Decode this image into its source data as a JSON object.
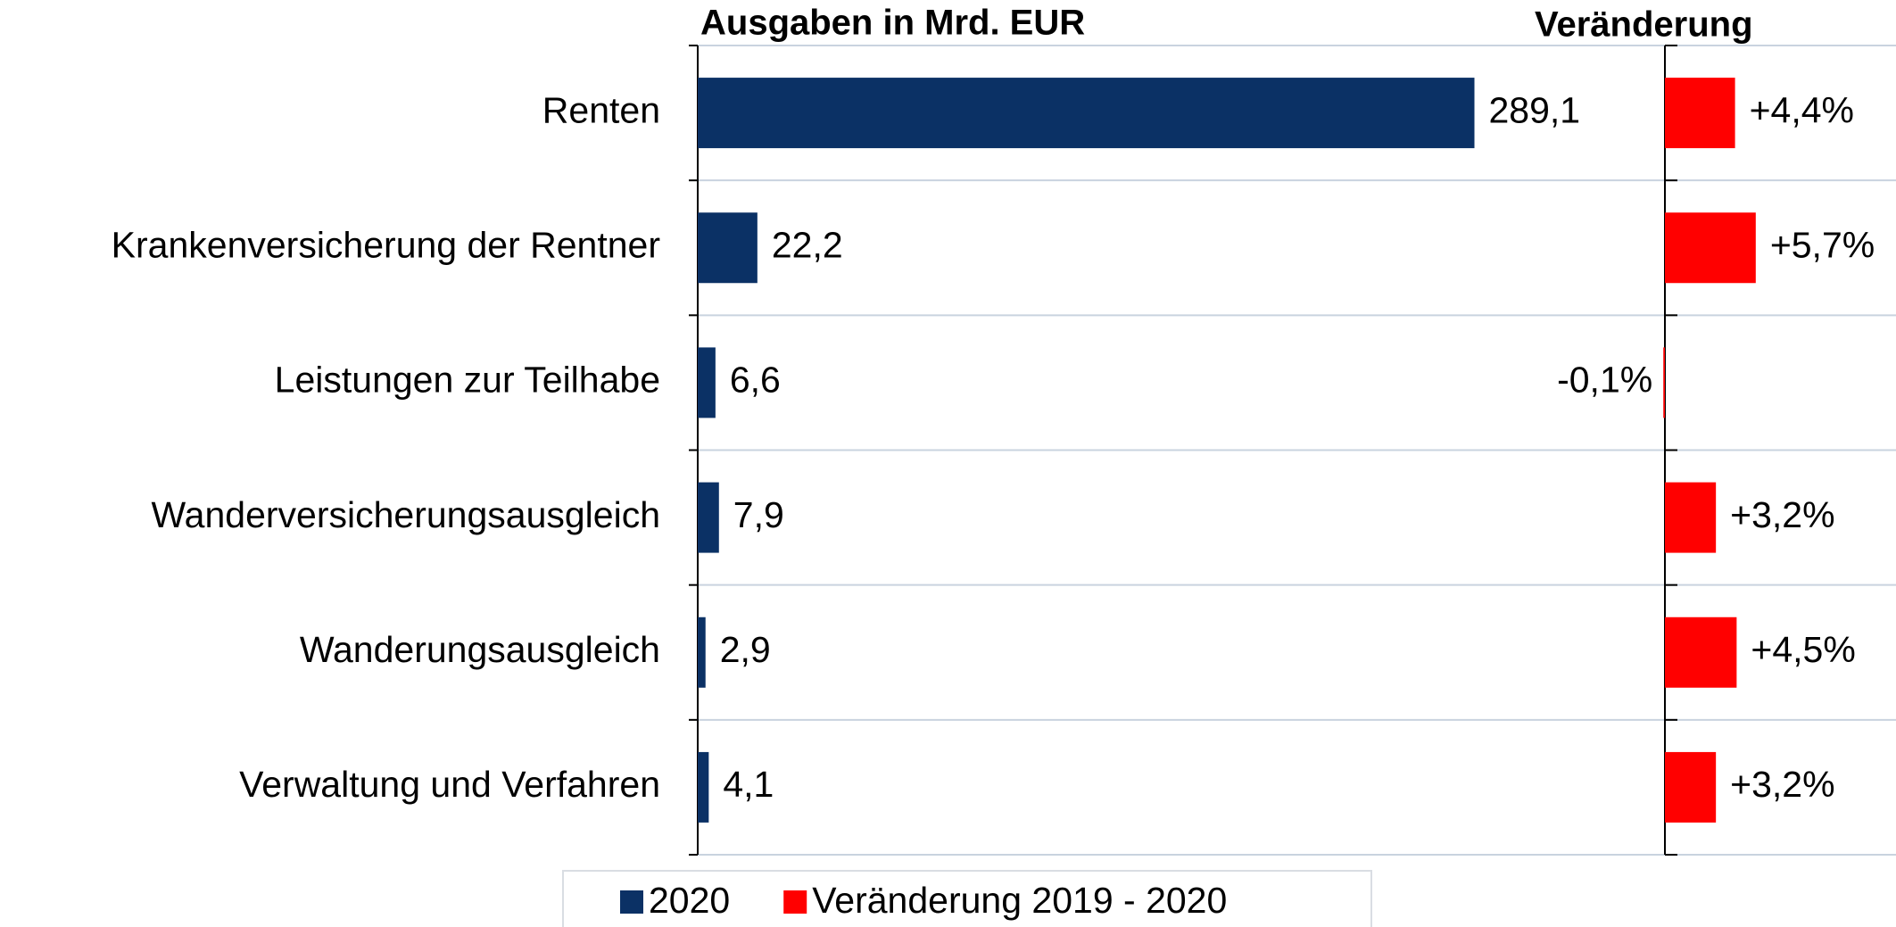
{
  "chart_data": [
    {
      "type": "bar",
      "orientation": "horizontal",
      "title": "Ausgaben in Mrd. EUR",
      "categories": [
        "Renten",
        "Krankenversicherung der Rentner",
        "Leistungen zur Teilhabe",
        "Wanderversicherungsausgleich",
        "Wanderungsausgleich",
        "Verwaltung und Verfahren"
      ],
      "series": [
        {
          "name": "2020",
          "color": "#0b3165",
          "values": [
            289.1,
            22.2,
            6.6,
            7.9,
            2.9,
            4.1
          ],
          "value_labels": [
            "289,1",
            "22,2",
            "6,6",
            "7,9",
            "2,9",
            "4,1"
          ]
        }
      ],
      "xlim": [
        0,
        360
      ]
    },
    {
      "type": "bar",
      "orientation": "horizontal",
      "title": "Veränderung",
      "series": [
        {
          "name": "Veränderung 2019 - 2020",
          "color": "#ff0000",
          "values": [
            4.4,
            5.7,
            -0.1,
            3.2,
            4.5,
            3.2
          ],
          "value_labels": [
            "+4,4%",
            "+5,7%",
            "-0,1%",
            "+3,2%",
            "+4,5%",
            "+3,2%"
          ]
        }
      ],
      "xlim": [
        0,
        14.5
      ]
    }
  ]
}
